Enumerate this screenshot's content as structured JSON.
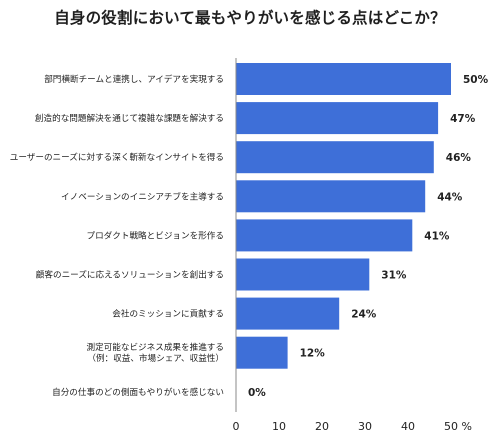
{
  "chart_data": {
    "type": "bar",
    "orientation": "horizontal",
    "title": "自身の役割において最もやりがいを感じる点はどこか？",
    "categories": [
      "部門横断チームと連携し、アイデアを実現する",
      "創造的な問題解決を通じて複雑な課題を解決する",
      "ユーザーのニーズに対する深く斬新なインサイトを得る",
      "イノベーションのイニシアチブを主導する",
      "プロダクト戦略とビジョンを形作る",
      "顧客のニーズに応えるソリューションを創出する",
      "会社のミッションに貢献する",
      "測定可能なビジネス成果を推進する\n（例：収益、市場シェア、収益性）",
      "自分の仕事のどの側面もやりがいを感じない"
    ],
    "values": [
      50,
      47,
      46,
      44,
      41,
      31,
      24,
      12,
      0
    ],
    "value_labels": [
      "50%",
      "47%",
      "46%",
      "44%",
      "41%",
      "31%",
      "24%",
      "12%",
      "0%"
    ],
    "xlim": [
      0,
      50
    ],
    "x_ticks": [
      "0",
      "10",
      "20",
      "30",
      "40",
      "50 %"
    ],
    "grid": false,
    "bar_color": "#3e6fd8"
  }
}
